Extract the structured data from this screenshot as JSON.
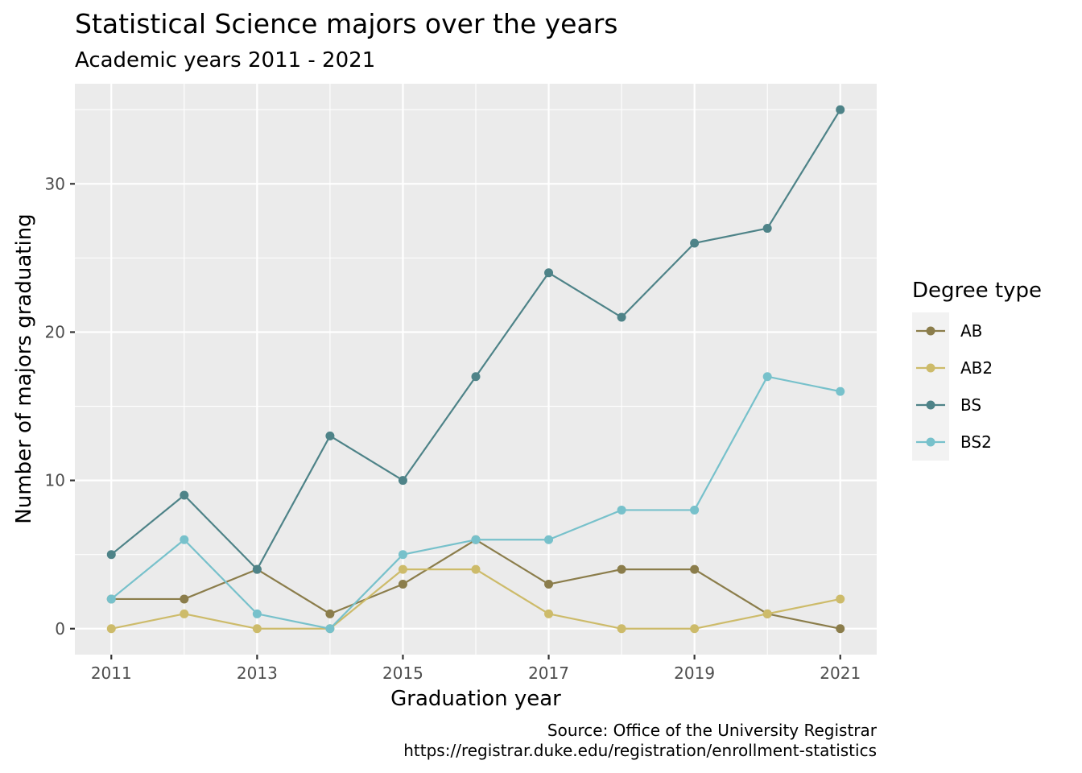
{
  "chart_data": {
    "type": "line",
    "title": "Statistical Science majors over the years",
    "subtitle": "Academic years 2011 - 2021",
    "xlabel": "Graduation year",
    "ylabel": "Number of majors graduating",
    "caption_lines": [
      "Source: Office of the University Registrar",
      "https://registrar.duke.edu/registration/enrollment-statistics"
    ],
    "x": [
      2011,
      2012,
      2013,
      2014,
      2015,
      2016,
      2017,
      2018,
      2019,
      2020,
      2021
    ],
    "x_ticks": [
      2011,
      2013,
      2015,
      2017,
      2019,
      2021
    ],
    "y_ticks": [
      0,
      10,
      20,
      30
    ],
    "xlim": [
      2010.5,
      2021.5
    ],
    "ylim": [
      -1.75,
      36.75
    ],
    "grid": true,
    "legend": {
      "title": "Degree type",
      "position": "right"
    },
    "series": [
      {
        "name": "AB",
        "color": "#8b7d4b",
        "values": [
          2,
          2,
          4,
          1,
          3,
          6,
          3,
          4,
          4,
          1,
          0
        ]
      },
      {
        "name": "AB2",
        "color": "#cdbb6a",
        "values": [
          0,
          1,
          0,
          0,
          4,
          4,
          1,
          0,
          0,
          1,
          2
        ]
      },
      {
        "name": "BS",
        "color": "#4e8388",
        "values": [
          5,
          9,
          4,
          13,
          10,
          17,
          24,
          21,
          26,
          27,
          35
        ]
      },
      {
        "name": "BS2",
        "color": "#77c1cb",
        "values": [
          2,
          6,
          1,
          0,
          5,
          6,
          6,
          8,
          8,
          17,
          16
        ]
      }
    ]
  }
}
